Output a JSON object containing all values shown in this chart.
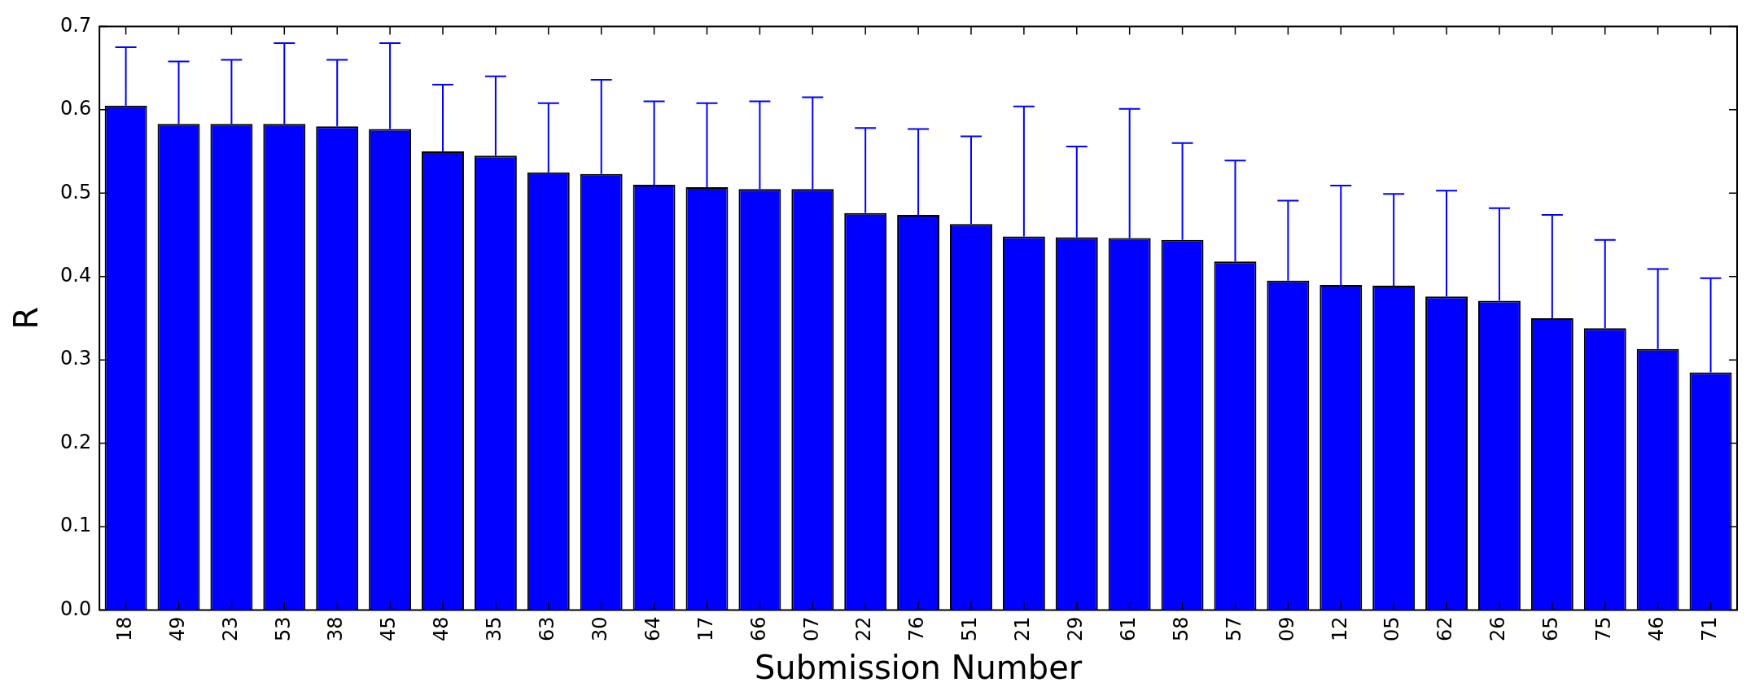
{
  "chart_data": {
    "type": "bar",
    "xlabel": "Submission Number",
    "ylabel": "R",
    "categories": [
      "18",
      "49",
      "23",
      "53",
      "38",
      "45",
      "48",
      "35",
      "63",
      "30",
      "64",
      "17",
      "66",
      "07",
      "22",
      "76",
      "51",
      "21",
      "29",
      "61",
      "58",
      "57",
      "09",
      "12",
      "05",
      "62",
      "26",
      "65",
      "75",
      "46",
      "71"
    ],
    "values": [
      0.605,
      0.583,
      0.583,
      0.583,
      0.58,
      0.577,
      0.55,
      0.545,
      0.525,
      0.523,
      0.51,
      0.507,
      0.505,
      0.505,
      0.476,
      0.474,
      0.463,
      0.448,
      0.447,
      0.446,
      0.444,
      0.418,
      0.395,
      0.39,
      0.389,
      0.376,
      0.371,
      0.35,
      0.338,
      0.313,
      0.285
    ],
    "errors": [
      [
        0.605,
        0.675
      ],
      [
        0.583,
        0.658
      ],
      [
        0.583,
        0.66
      ],
      [
        0.583,
        0.68
      ],
      [
        0.58,
        0.66
      ],
      [
        0.577,
        0.68
      ],
      [
        0.55,
        0.63
      ],
      [
        0.545,
        0.64
      ],
      [
        0.525,
        0.608
      ],
      [
        0.523,
        0.636
      ],
      [
        0.51,
        0.61
      ],
      [
        0.507,
        0.608
      ],
      [
        0.505,
        0.61
      ],
      [
        0.505,
        0.615
      ],
      [
        0.476,
        0.578
      ],
      [
        0.474,
        0.577
      ],
      [
        0.463,
        0.568
      ],
      [
        0.448,
        0.604
      ],
      [
        0.447,
        0.556
      ],
      [
        0.446,
        0.601
      ],
      [
        0.444,
        0.56
      ],
      [
        0.418,
        0.539
      ],
      [
        0.395,
        0.491
      ],
      [
        0.39,
        0.509
      ],
      [
        0.389,
        0.499
      ],
      [
        0.376,
        0.503
      ],
      [
        0.371,
        0.482
      ],
      [
        0.35,
        0.474
      ],
      [
        0.338,
        0.444
      ],
      [
        0.313,
        0.409
      ],
      [
        0.285,
        0.398
      ]
    ],
    "color": "#0000ff",
    "ylim": [
      0,
      0.7
    ],
    "yticks": [
      {
        "value": 0,
        "label": "0.0"
      },
      {
        "value": 0.1,
        "label": "0.1"
      },
      {
        "value": 0.2,
        "label": "0.2"
      },
      {
        "value": 0.3,
        "label": "0.3"
      },
      {
        "value": 0.4,
        "label": "0.4"
      },
      {
        "value": 0.5,
        "label": "0.5"
      },
      {
        "value": 0.6,
        "label": "0.6"
      },
      {
        "value": 0.7,
        "label": "0.7"
      }
    ],
    "grid": false,
    "legend": false
  }
}
